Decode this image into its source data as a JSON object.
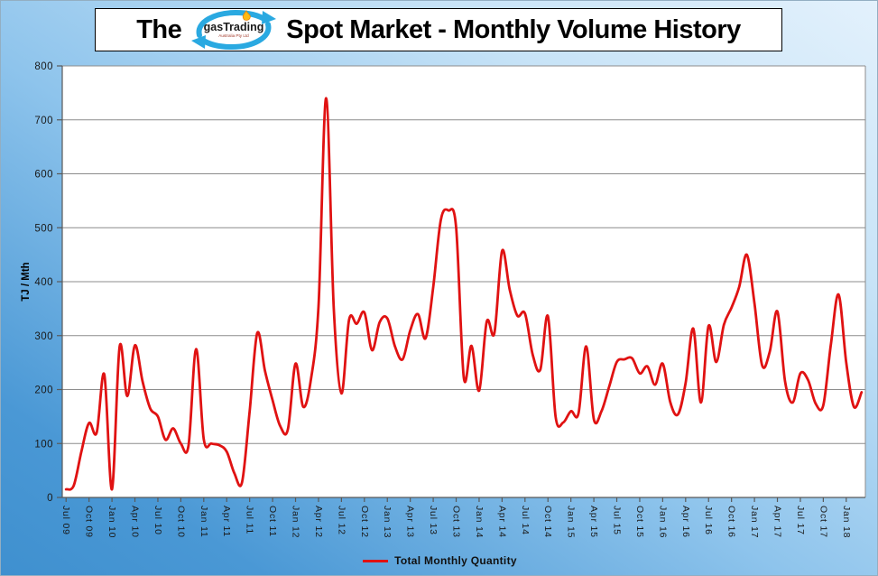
{
  "title": {
    "prefix": "The",
    "suffix": "Spot Market - Monthly Volume History"
  },
  "logo": {
    "name": "gasTrading",
    "subtitle": "Australia Pty Ltd"
  },
  "y_axis": {
    "label": "TJ / Mth",
    "ticks": [
      0,
      100,
      200,
      300,
      400,
      500,
      600,
      700,
      800
    ]
  },
  "legend": {
    "label": "Total Monthly Quantity"
  },
  "colors": {
    "line": "#e01212",
    "plot_bg": "#ffffff",
    "grid": "#8c8c8c",
    "axis": "#595959",
    "tick_text": "#1a1a1a"
  },
  "chart_data": {
    "type": "line",
    "title": "The gasTrading Spot Market - Monthly Volume History",
    "xlabel": "",
    "ylabel": "TJ / Mth",
    "ylim": [
      0,
      800
    ],
    "y_tick_step": 100,
    "grid": true,
    "legend_position": "bottom",
    "x_tick_every": 3,
    "x": [
      "Jul 09",
      "Aug 09",
      "Sep 09",
      "Oct 09",
      "Nov 09",
      "Dec 09",
      "Jan 10",
      "Feb 10",
      "Mar 10",
      "Apr 10",
      "May 10",
      "Jun 10",
      "Jul 10",
      "Aug 10",
      "Sep 10",
      "Oct 10",
      "Nov 10",
      "Dec 10",
      "Jan 11",
      "Feb 11",
      "Mar 11",
      "Apr 11",
      "May 11",
      "Jun 11",
      "Jul 11",
      "Aug 11",
      "Sep 11",
      "Oct 11",
      "Nov 11",
      "Dec 11",
      "Jan 12",
      "Feb 12",
      "Mar 12",
      "Apr 12",
      "May 12",
      "Jun 12",
      "Jul 12",
      "Aug 12",
      "Sep 12",
      "Oct 12",
      "Nov 12",
      "Dec 12",
      "Jan 13",
      "Feb 13",
      "Mar 13",
      "Apr 13",
      "May 13",
      "Jun 13",
      "Jul 13",
      "Aug 13",
      "Sep 13",
      "Oct 13",
      "Nov 13",
      "Dec 13",
      "Jan 14",
      "Feb 14",
      "Mar 14",
      "Apr 14",
      "May 14",
      "Jun 14",
      "Jul 14",
      "Aug 14",
      "Sep 14",
      "Oct 14",
      "Nov 14",
      "Dec 14",
      "Jan 15",
      "Feb 15",
      "Mar 15",
      "Apr 15",
      "May 15",
      "Jun 15",
      "Jul 15",
      "Aug 15",
      "Sep 15",
      "Oct 15",
      "Nov 15",
      "Dec 15",
      "Jan 16",
      "Feb 16",
      "Mar 16",
      "Apr 16",
      "May 16",
      "Jun 16",
      "Jul 16",
      "Aug 16",
      "Sep 16",
      "Oct 16",
      "Nov 16",
      "Dec 16",
      "Jan 17",
      "Feb 17",
      "Mar 17",
      "Apr 17",
      "May 17",
      "Jun 17",
      "Jul 17",
      "Aug 17",
      "Sep 17",
      "Oct 17",
      "Nov 17",
      "Dec 17",
      "Jan 18",
      "Feb 18",
      "Mar 18"
    ],
    "series": [
      {
        "name": "Total Monthly Quantity",
        "color": "#e01212",
        "values": [
          15,
          22,
          85,
          138,
          120,
          228,
          15,
          280,
          188,
          282,
          215,
          165,
          150,
          107,
          128,
          100,
          96,
          275,
          108,
          100,
          97,
          85,
          45,
          28,
          160,
          305,
          235,
          180,
          132,
          126,
          248,
          168,
          218,
          355,
          740,
          350,
          193,
          330,
          322,
          343,
          273,
          325,
          332,
          280,
          256,
          310,
          340,
          295,
          390,
          515,
          532,
          500,
          222,
          281,
          198,
          326,
          305,
          457,
          385,
          337,
          341,
          265,
          237,
          336,
          150,
          139,
          160,
          156,
          280,
          145,
          160,
          205,
          251,
          256,
          258,
          230,
          243,
          209,
          248,
          176,
          154,
          212,
          313,
          176,
          318,
          251,
          320,
          352,
          390,
          450,
          360,
          245,
          270,
          345,
          215,
          176,
          230,
          218,
          174,
          171,
          285,
          376,
          250,
          168,
          195
        ]
      }
    ]
  }
}
